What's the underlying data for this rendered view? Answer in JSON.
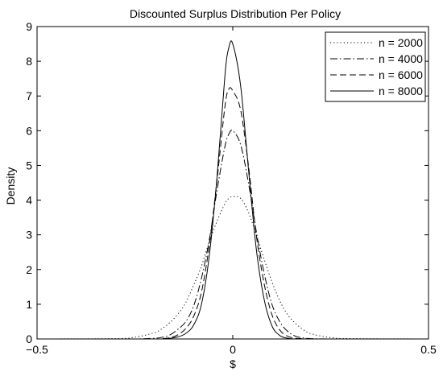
{
  "chart_data": {
    "type": "line",
    "title": "Discounted Surplus Distribution Per Policy",
    "xlabel": "$",
    "ylabel": "Density",
    "xlim": [
      -0.5,
      0.5
    ],
    "ylim": [
      0,
      9
    ],
    "x_ticks": [
      "−0.5",
      "0",
      "0.5"
    ],
    "y_ticks": [
      "0",
      "1",
      "2",
      "3",
      "4",
      "5",
      "6",
      "7",
      "8",
      "9"
    ],
    "grid": false,
    "legend_position": "top-right",
    "x": [
      -0.5,
      -0.3,
      -0.25,
      -0.2,
      -0.18,
      -0.16,
      -0.14,
      -0.12,
      -0.1,
      -0.08,
      -0.06,
      -0.04,
      -0.02,
      -0.01,
      0,
      0.02,
      0.04,
      0.06,
      0.08,
      0.1,
      0.12,
      0.14,
      0.16,
      0.18,
      0.2,
      0.25,
      0.3,
      0.5
    ],
    "series": [
      {
        "name": "n = 2000",
        "line_style": "dotted",
        "values": [
          0,
          0.01,
          0.05,
          0.18,
          0.3,
          0.48,
          0.72,
          1.05,
          1.55,
          2.1,
          2.8,
          3.4,
          3.9,
          4.05,
          4.1,
          4.05,
          3.65,
          3.0,
          2.3,
          1.65,
          1.1,
          0.7,
          0.45,
          0.27,
          0.15,
          0.04,
          0.01,
          0
        ]
      },
      {
        "name": "n = 4000",
        "line_style": "dashdot",
        "values": [
          0,
          0,
          0,
          0.02,
          0.05,
          0.12,
          0.28,
          0.5,
          0.95,
          1.75,
          2.85,
          4.3,
          5.55,
          5.9,
          6.0,
          5.6,
          4.5,
          3.1,
          1.9,
          1.0,
          0.5,
          0.22,
          0.08,
          0.03,
          0.01,
          0,
          0,
          0
        ]
      },
      {
        "name": "n = 6000",
        "line_style": "dashed",
        "values": [
          0,
          0,
          0,
          0,
          0.01,
          0.04,
          0.12,
          0.3,
          0.65,
          1.35,
          2.7,
          4.6,
          6.7,
          7.2,
          7.15,
          6.6,
          5.0,
          3.0,
          1.6,
          0.7,
          0.26,
          0.08,
          0.02,
          0.01,
          0,
          0,
          0,
          0
        ]
      },
      {
        "name": "n = 8000",
        "line_style": "solid",
        "values": [
          0,
          0,
          0,
          0,
          0,
          0.02,
          0.06,
          0.16,
          0.4,
          1.0,
          2.4,
          4.7,
          7.6,
          8.4,
          8.5,
          7.3,
          4.9,
          2.6,
          1.15,
          0.38,
          0.1,
          0.02,
          0,
          0,
          0,
          0,
          0,
          0
        ]
      }
    ]
  }
}
